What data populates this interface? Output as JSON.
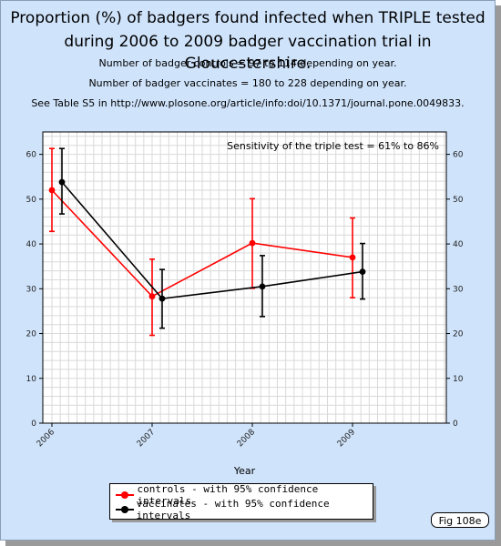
{
  "header": {
    "title_line1": "Proportion (%) of badgers found infected when TRIPLE tested",
    "title_line2": "during 2006 to 2009 badger vaccination trial in Gloucestershire.",
    "note1": "Number of badger controls = 97 to 114 depending on year.",
    "note2": "Number of badger vaccinates = 180 to 228 depending on year.",
    "note3": "See Table S5 in http://www.plosone.org/article/info:doi/10.1371/journal.pone.0049833."
  },
  "fig_tag": "Fig 108e",
  "colors": {
    "background": "#cfe3fb",
    "controls": "#ff0000",
    "vaccinates": "#000000",
    "grid": "#d9d9d9"
  },
  "chart_data": {
    "type": "line",
    "xlabel": "Year",
    "categories": [
      "2006",
      "2007",
      "2008",
      "2009"
    ],
    "ylim": [
      0,
      65
    ],
    "yticks": [
      0,
      10,
      20,
      30,
      40,
      50,
      60
    ],
    "grid": true,
    "legend_position": "bottom-center",
    "annotation": "Sensitivity of the triple test = 61% to 86%",
    "series": [
      {
        "name": "controls - with 95% confidence intervals",
        "color": "#ff0000",
        "x": [
          2006.0,
          2007.0,
          2008.0,
          2009.0
        ],
        "values": [
          52,
          28.3,
          40.2,
          37
        ],
        "ci_low": [
          42.8,
          19.6,
          30.1,
          28
        ],
        "ci_high": [
          61.3,
          36.6,
          50.1,
          45.8
        ]
      },
      {
        "name": "vaccinates - with 95% confidence intervals",
        "color": "#000000",
        "x": [
          2006.1,
          2007.1,
          2008.1,
          2009.1
        ],
        "values": [
          53.8,
          27.8,
          30.5,
          33.8
        ],
        "ci_low": [
          46.7,
          21.2,
          23.8,
          27.7
        ],
        "ci_high": [
          61.3,
          34.3,
          37.4,
          40.1
        ]
      }
    ]
  }
}
